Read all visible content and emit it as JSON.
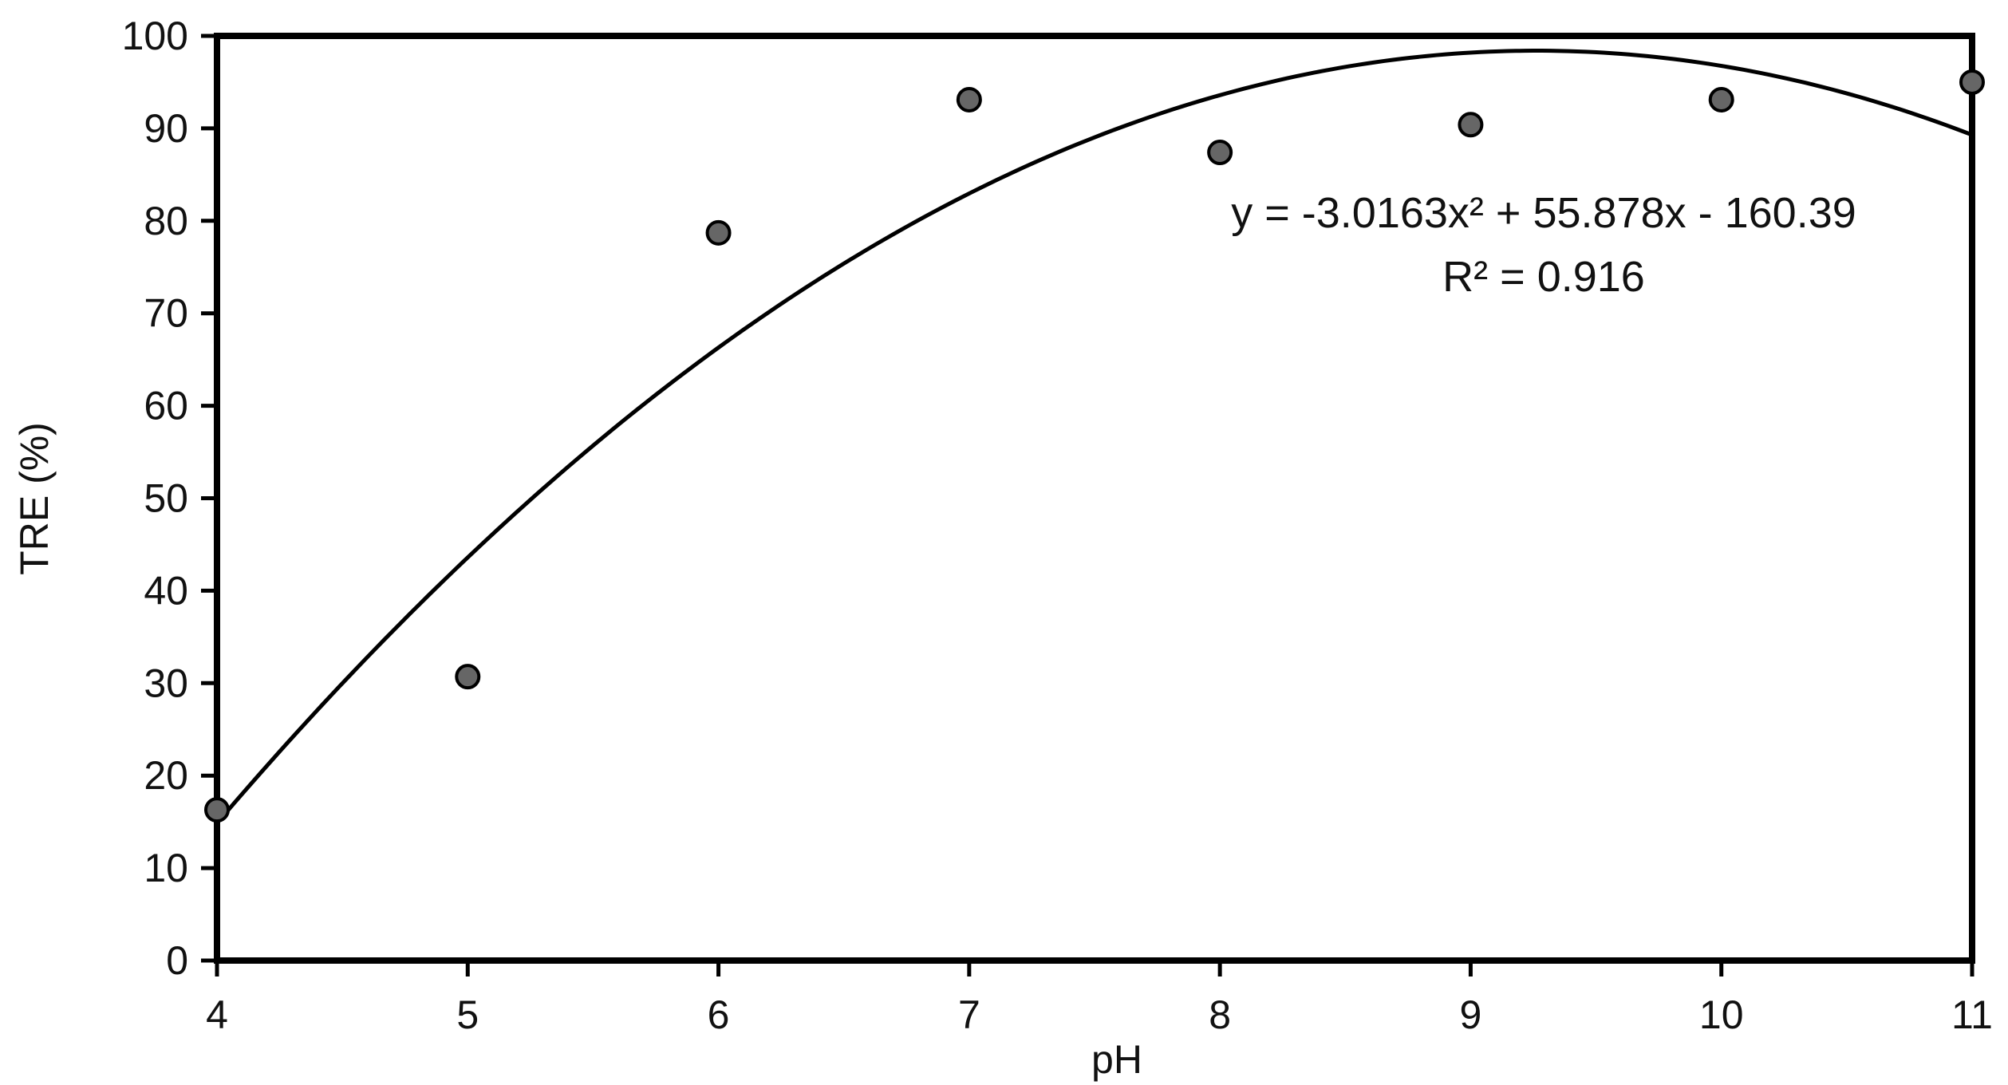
{
  "chart_data": {
    "type": "scatter",
    "title": "",
    "xlabel": "pH",
    "ylabel": "TRE (%)",
    "xlim": [
      4,
      11
    ],
    "ylim": [
      0,
      100
    ],
    "x_ticks": [
      "4",
      "5",
      "6",
      "7",
      "8",
      "9",
      "10",
      "11"
    ],
    "y_ticks": [
      "0",
      "10",
      "20",
      "30",
      "40",
      "50",
      "60",
      "70",
      "80",
      "90",
      "100"
    ],
    "grid": false,
    "legend": "none",
    "series": [
      {
        "type": "scatter",
        "x": [
          4,
          5,
          6,
          7,
          8,
          9,
          10,
          11
        ],
        "y": [
          16.3,
          30.7,
          78.7,
          93.1,
          87.4,
          90.4,
          93.1,
          95.0
        ],
        "color": "#666666"
      },
      {
        "type": "trendline",
        "fit": "polynomial-2",
        "coefficients": [
          -3.0163,
          55.878,
          -160.39
        ],
        "color": "#000000"
      }
    ],
    "annotations": [
      "y = -3.0163x² + 55.878x - 160.39",
      "R² = 0.916"
    ]
  }
}
